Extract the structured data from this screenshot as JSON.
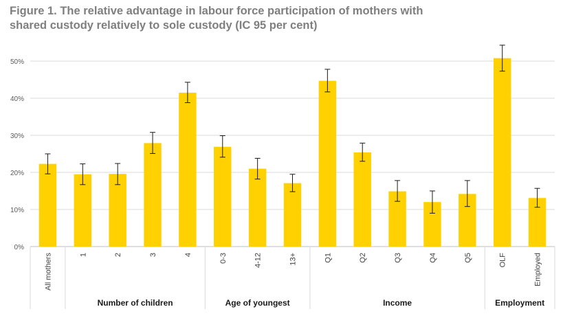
{
  "chart_data": {
    "type": "bar",
    "title_lines": [
      "Figure 1. The relative advantage in labour force participation of mothers with",
      "shared custody relatively to sole custody (IC 95 per cent)"
    ],
    "xlabel": "",
    "ylabel": "",
    "ylim": [
      0,
      50
    ],
    "yticks": [
      0,
      10,
      20,
      30,
      40,
      50
    ],
    "ytick_labels": [
      "0%",
      "10%",
      "20%",
      "30%",
      "40%",
      "50%"
    ],
    "grid": true,
    "legend": "none",
    "bar_color": "#FFD100",
    "categories": [
      "All mothers",
      "1",
      "2",
      "3",
      "4",
      "0-3",
      "4-12",
      "13+",
      "Q1",
      "Q2",
      "Q3",
      "Q4",
      "Q5",
      "OLF",
      "Employed"
    ],
    "values": [
      22.3,
      19.5,
      19.6,
      27.9,
      41.5,
      26.9,
      21.0,
      17.1,
      44.7,
      25.4,
      14.9,
      12.0,
      14.2,
      50.8,
      13.1
    ],
    "ci_low": [
      19.6,
      16.7,
      16.7,
      25.1,
      38.8,
      24.1,
      18.2,
      14.8,
      41.7,
      23.0,
      12.2,
      9.0,
      10.8,
      47.3,
      10.6
    ],
    "ci_high": [
      25.0,
      22.3,
      22.4,
      30.8,
      44.3,
      29.9,
      23.8,
      19.5,
      47.8,
      27.9,
      17.8,
      15.0,
      17.8,
      54.3,
      15.7
    ],
    "groups": [
      {
        "name": "",
        "start": 0,
        "end": 0
      },
      {
        "name": "Number of children",
        "start": 1,
        "end": 4
      },
      {
        "name": "Age of youngest",
        "start": 5,
        "end": 7
      },
      {
        "name": "Income",
        "start": 8,
        "end": 12
      },
      {
        "name": "Employment",
        "start": 13,
        "end": 14
      }
    ]
  }
}
